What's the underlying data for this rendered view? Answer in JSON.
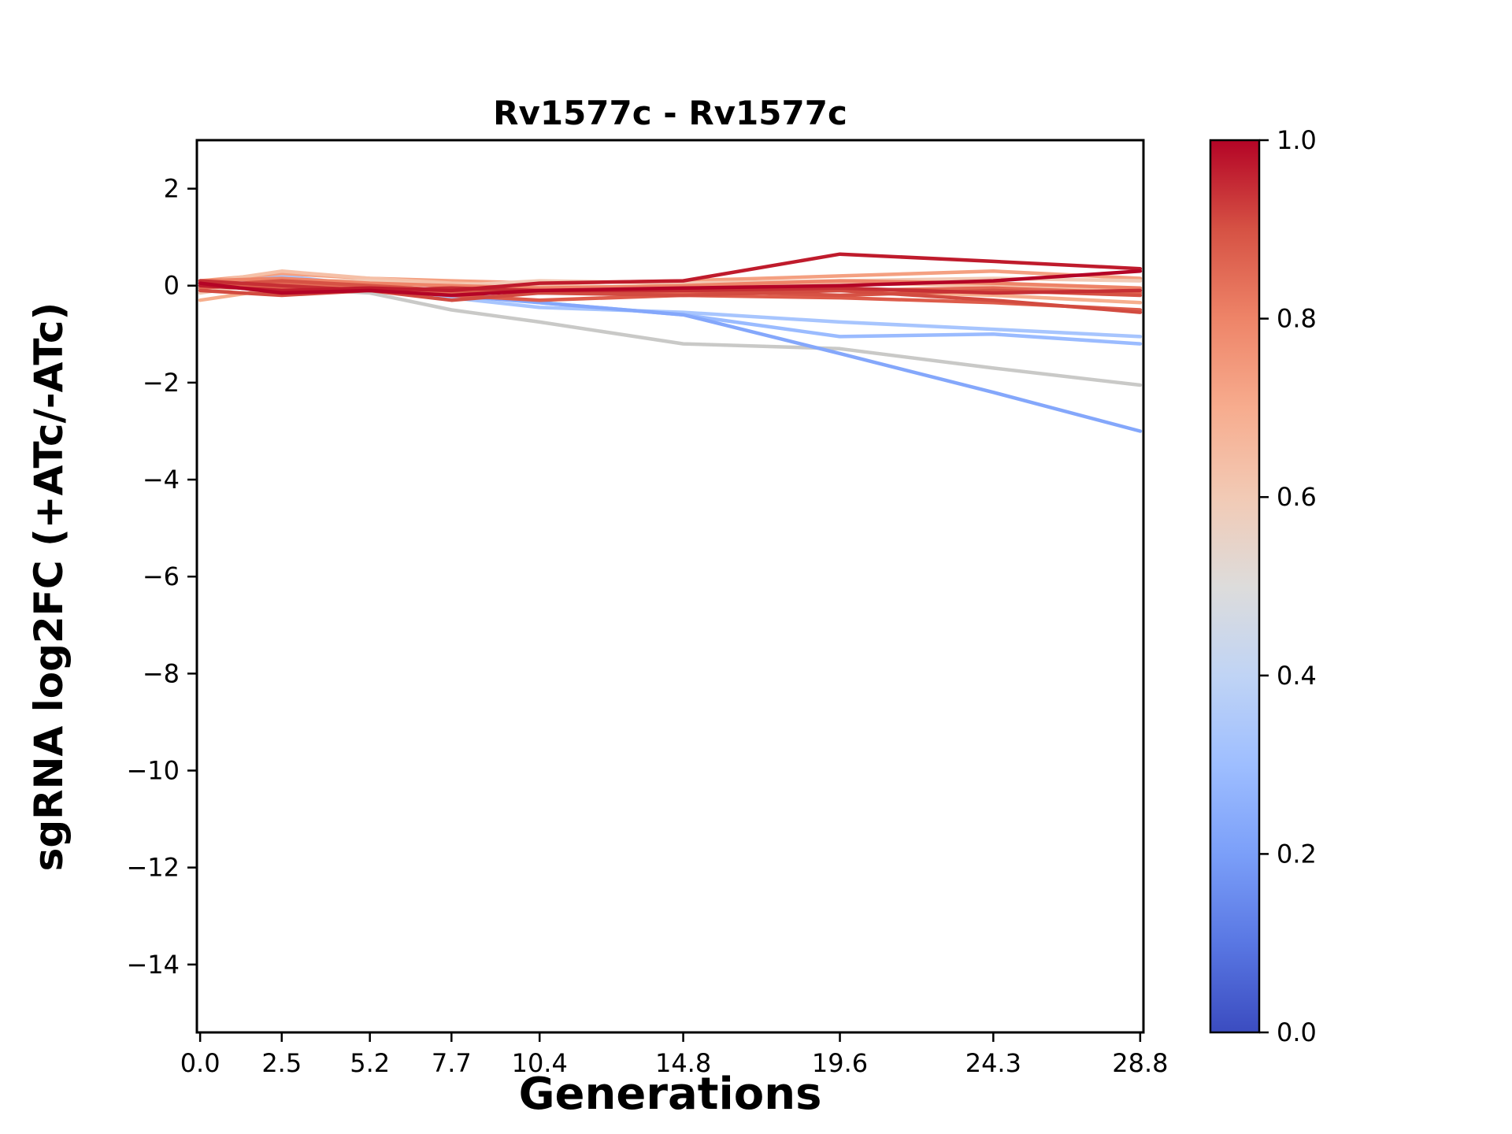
{
  "title": "Rv1577c - Rv1577c",
  "colors": {
    "background": "#ffffff",
    "axis": "#000000"
  },
  "chart_data": {
    "type": "line",
    "title": "Rv1577c - Rv1577c",
    "xlabel": "Generations",
    "ylabel": "sgRNA log2FC (+ATc/-ATc)",
    "x": [
      0.0,
      2.5,
      5.2,
      7.7,
      10.4,
      14.8,
      19.6,
      24.3,
      28.8
    ],
    "xtick_labels": [
      "0.0",
      "2.5",
      "5.2",
      "7.7",
      "10.4",
      "14.8",
      "19.6",
      "24.3",
      "28.8"
    ],
    "ytick_values": [
      2,
      0,
      -2,
      -4,
      -6,
      -8,
      -10,
      -12,
      -14
    ],
    "xlim": [
      -0.1,
      28.9
    ],
    "ylim": [
      -15.4,
      3.0
    ],
    "grid": false,
    "legend": "none",
    "series": [
      {
        "colorbar_value": 0.5,
        "color": "#c9c9c7",
        "values": [
          0.0,
          -0.05,
          -0.15,
          -0.5,
          -0.75,
          -1.2,
          -1.3,
          -1.7,
          -2.05
        ]
      },
      {
        "colorbar_value": 0.38,
        "color": "#a7c5fe",
        "values": [
          0.05,
          0.2,
          0.0,
          -0.25,
          -0.45,
          -0.55,
          -0.75,
          -0.9,
          -1.05
        ]
      },
      {
        "colorbar_value": 0.35,
        "color": "#9abbff",
        "values": [
          0.0,
          0.1,
          0.05,
          -0.15,
          -0.35,
          -0.6,
          -1.05,
          -1.0,
          -1.2
        ]
      },
      {
        "colorbar_value": 0.28,
        "color": "#84a7fb",
        "values": [
          0.0,
          0.05,
          -0.05,
          -0.2,
          -0.35,
          -0.6,
          -1.4,
          -2.2,
          -3.0
        ]
      },
      {
        "colorbar_value": 0.72,
        "color": "#f4a081",
        "values": [
          0.1,
          0.25,
          0.15,
          0.1,
          0.05,
          0.1,
          0.2,
          0.3,
          0.15
        ]
      },
      {
        "colorbar_value": 0.68,
        "color": "#f6ae8d",
        "values": [
          -0.3,
          -0.05,
          0.05,
          0.0,
          -0.05,
          0.0,
          -0.1,
          -0.2,
          -0.35
        ]
      },
      {
        "colorbar_value": 0.63,
        "color": "#f5c0a7",
        "values": [
          0.05,
          0.3,
          0.15,
          0.05,
          0.0,
          -0.05,
          0.05,
          0.0,
          -0.1
        ]
      },
      {
        "colorbar_value": 0.6,
        "color": "#f2cab5",
        "values": [
          -0.15,
          0.1,
          0.1,
          0.0,
          0.1,
          0.05,
          0.1,
          0.15,
          0.1
        ]
      },
      {
        "colorbar_value": 0.8,
        "color": "#ee8468",
        "values": [
          0.1,
          0.15,
          0.05,
          0.0,
          -0.05,
          0.0,
          0.1,
          0.05,
          -0.05
        ]
      },
      {
        "colorbar_value": 0.85,
        "color": "#e36a55",
        "values": [
          -0.05,
          0.05,
          -0.05,
          -0.15,
          -0.1,
          -0.15,
          -0.1,
          -0.05,
          -0.15
        ]
      },
      {
        "colorbar_value": 0.88,
        "color": "#dd5c4b",
        "values": [
          0.05,
          -0.05,
          -0.1,
          -0.2,
          -0.3,
          -0.2,
          -0.25,
          -0.35,
          -0.5
        ]
      },
      {
        "colorbar_value": 0.9,
        "color": "#d65244",
        "values": [
          0.0,
          0.1,
          0.0,
          -0.1,
          -0.15,
          -0.1,
          -0.2,
          -0.1,
          -0.2
        ]
      },
      {
        "colorbar_value": 0.92,
        "color": "#d24b40",
        "values": [
          -0.1,
          -0.2,
          -0.1,
          -0.3,
          -0.15,
          -0.2,
          -0.1,
          -0.3,
          -0.55
        ]
      },
      {
        "colorbar_value": 0.95,
        "color": "#c62f34",
        "values": [
          0.1,
          0.0,
          -0.1,
          -0.05,
          -0.1,
          -0.1,
          -0.05,
          -0.15,
          -0.1
        ]
      },
      {
        "colorbar_value": 0.97,
        "color": "#bf1b2c",
        "values": [
          0.0,
          -0.1,
          -0.05,
          -0.1,
          0.05,
          0.1,
          0.65,
          0.5,
          0.35
        ]
      },
      {
        "colorbar_value": 1.0,
        "color": "#b40426",
        "values": [
          0.05,
          -0.15,
          -0.1,
          -0.2,
          -0.1,
          -0.05,
          0.0,
          0.1,
          0.3
        ]
      }
    ],
    "colorbar": {
      "colormap": "coolwarm",
      "tick_labels": [
        "1.0",
        "0.8",
        "0.6",
        "0.4",
        "0.2",
        "0.0"
      ],
      "tick_values": [
        1.0,
        0.8,
        0.6,
        0.4,
        0.2,
        0.0
      ],
      "gradient_stops": [
        "#3b4cc0",
        "#5977e3",
        "#7b9ff9",
        "#9ebeff",
        "#c0d4f5",
        "#dddcdb",
        "#f2cab5",
        "#f7ac8e",
        "#ee8468",
        "#d65244",
        "#b40426"
      ]
    }
  }
}
